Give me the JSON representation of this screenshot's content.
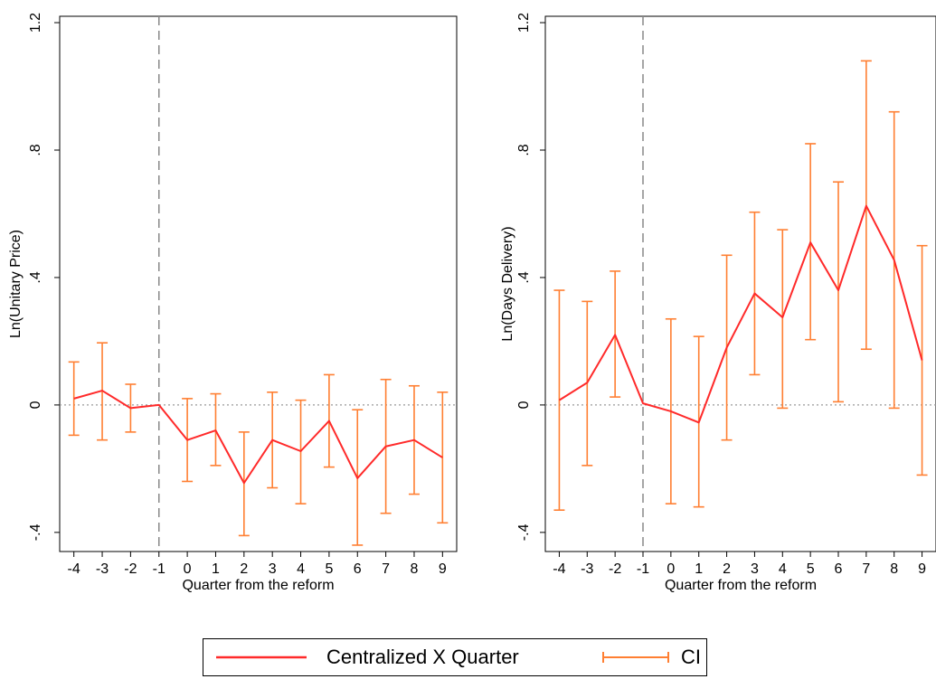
{
  "colors": {
    "estimate": "#ff2a2a",
    "ci": "#ff7f32",
    "axis": "#000000",
    "refline": "#888888",
    "zeroline": "#999999"
  },
  "legend": {
    "estimate_label": "Centralized X Quarter",
    "ci_label": "CI"
  },
  "chart_data": [
    {
      "type": "line",
      "title": "",
      "xlabel": "Quarter from the reform",
      "ylabel": "Ln(Unitary Price)",
      "x": [
        -4,
        -3,
        -2,
        -1,
        0,
        1,
        2,
        3,
        4,
        5,
        6,
        7,
        8,
        9
      ],
      "xlim": [
        -4.5,
        9.5
      ],
      "ylim": [
        -0.46,
        1.22
      ],
      "yticks": [
        -0.4,
        0,
        0.4,
        0.8,
        1.2
      ],
      "ytick_labels": [
        "-.4",
        "0",
        ".4",
        ".8",
        "1.2"
      ],
      "reference_x": -1,
      "reference_y": 0,
      "series": [
        {
          "name": "Centralized X Quarter",
          "values": [
            0.02,
            0.045,
            -0.01,
            0.0,
            -0.11,
            -0.08,
            -0.245,
            -0.11,
            -0.145,
            -0.05,
            -0.23,
            -0.13,
            -0.11,
            -0.165
          ],
          "ci_low": [
            -0.095,
            -0.11,
            -0.085,
            0.0,
            -0.24,
            -0.19,
            -0.41,
            -0.26,
            -0.31,
            -0.195,
            -0.44,
            -0.34,
            -0.28,
            -0.37
          ],
          "ci_high": [
            0.135,
            0.195,
            0.065,
            0.0,
            0.02,
            0.035,
            -0.085,
            0.04,
            0.015,
            0.095,
            -0.015,
            0.08,
            0.06,
            0.04
          ]
        }
      ],
      "grid": false,
      "legend_position": "bottom"
    },
    {
      "type": "line",
      "title": "",
      "xlabel": "Quarter from the reform",
      "ylabel": "Ln(Days Delivery)",
      "x": [
        -4,
        -3,
        -2,
        -1,
        0,
        1,
        2,
        3,
        4,
        5,
        6,
        7,
        8,
        9
      ],
      "xlim": [
        -4.5,
        9.5
      ],
      "ylim": [
        -0.46,
        1.22
      ],
      "yticks": [
        -0.4,
        0,
        0.4,
        0.8,
        1.2
      ],
      "ytick_labels": [
        "-.4",
        "0",
        ".4",
        ".8",
        "1.2"
      ],
      "reference_x": -1,
      "reference_y": 0,
      "series": [
        {
          "name": "Centralized X Quarter",
          "values": [
            0.015,
            0.07,
            0.22,
            0.005,
            -0.02,
            -0.055,
            0.18,
            0.35,
            0.275,
            0.51,
            0.36,
            0.625,
            0.455,
            0.14
          ],
          "ci_low": [
            -0.33,
            -0.19,
            0.025,
            0.005,
            -0.31,
            -0.32,
            -0.11,
            0.095,
            -0.01,
            0.205,
            0.01,
            0.175,
            -0.01,
            -0.22
          ],
          "ci_high": [
            0.36,
            0.325,
            0.42,
            0.005,
            0.27,
            0.215,
            0.47,
            0.605,
            0.55,
            0.82,
            0.7,
            1.08,
            0.92,
            0.5
          ]
        }
      ],
      "grid": false,
      "legend_position": "bottom"
    }
  ]
}
